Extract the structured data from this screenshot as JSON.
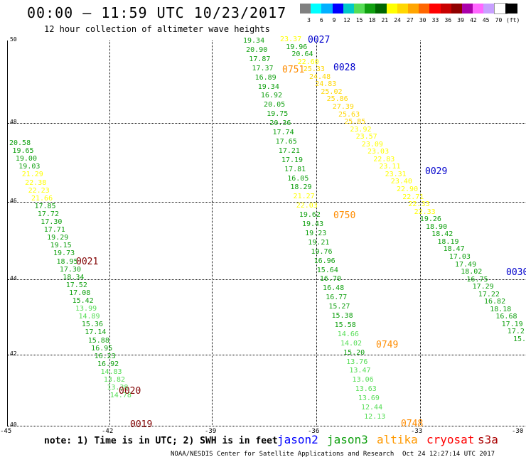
{
  "header": {
    "title": "00:00 – 11:59 UTC 10/23/2017",
    "subtitle": "12 hour collection of altimeter wave heights"
  },
  "legend": {
    "colors": [
      "#808080",
      "#00ffff",
      "#00b0ff",
      "#0000ff",
      "#00c8c8",
      "#55dd55",
      "#10a010",
      "#006600",
      "#ffff00",
      "#ffd700",
      "#ffa500",
      "#ff6600",
      "#ff0000",
      "#c80000",
      "#900000",
      "#aa00aa",
      "#ff66ff",
      "#c8a0ff",
      "#ffffff",
      "#000000"
    ],
    "labels": [
      "3",
      "6",
      "9",
      "12",
      "15",
      "18",
      "21",
      "24",
      "27",
      "30",
      "33",
      "36",
      "39",
      "42",
      "45",
      "70"
    ],
    "unit": "(ft)"
  },
  "axes": {
    "lat_labels": [
      "50",
      "48",
      "46",
      "44",
      "42",
      "40"
    ],
    "lon_labels": [
      "-45",
      "-42",
      "-39",
      "-36",
      "-33",
      "-30"
    ]
  },
  "passes": {
    "p0019": "0019",
    "p0020": "0020",
    "p0021": "0021",
    "p0027": "0027",
    "p0028": "0028",
    "p0029": "0029",
    "p0030": "0030",
    "p0748": "0748",
    "p0749": "0749",
    "p0750": "0750",
    "p0751": "0751"
  },
  "tracks": {
    "west": [
      {
        "v": "20.58",
        "c": "#10a010"
      },
      {
        "v": "19.65",
        "c": "#10a010"
      },
      {
        "v": "19.00",
        "c": "#10a010"
      },
      {
        "v": "19.03",
        "c": "#10a010"
      },
      {
        "v": "21.29",
        "c": "#ffff00"
      },
      {
        "v": "22.38",
        "c": "#ffff00"
      },
      {
        "v": "22.23",
        "c": "#ffff00"
      },
      {
        "v": "21.66",
        "c": "#ffff00"
      },
      {
        "v": "17.85",
        "c": "#10a010"
      },
      {
        "v": "17.72",
        "c": "#10a010"
      },
      {
        "v": "17.30",
        "c": "#10a010"
      },
      {
        "v": "17.71",
        "c": "#10a010"
      },
      {
        "v": "19.29",
        "c": "#10a010"
      },
      {
        "v": "19.15",
        "c": "#10a010"
      },
      {
        "v": "19.73",
        "c": "#10a010"
      },
      {
        "v": "18.95",
        "c": "#10a010"
      },
      {
        "v": "17.30",
        "c": "#10a010"
      },
      {
        "v": "18.34",
        "c": "#10a010"
      },
      {
        "v": "17.52",
        "c": "#10a010"
      },
      {
        "v": "17.08",
        "c": "#10a010"
      },
      {
        "v": "15.42",
        "c": "#10a010"
      },
      {
        "v": "13.99",
        "c": "#55dd55"
      },
      {
        "v": "14.89",
        "c": "#55dd55"
      },
      {
        "v": "15.36",
        "c": "#10a010"
      },
      {
        "v": "17.14",
        "c": "#10a010"
      },
      {
        "v": "15.88",
        "c": "#10a010"
      },
      {
        "v": "16.95",
        "c": "#10a010"
      },
      {
        "v": "16.23",
        "c": "#10a010"
      },
      {
        "v": "16.92",
        "c": "#10a010"
      },
      {
        "v": "14.83",
        "c": "#55dd55"
      },
      {
        "v": "13.82",
        "c": "#55dd55"
      },
      {
        "v": "13.38",
        "c": "#55dd55"
      },
      {
        "v": "14.78",
        "c": "#55dd55"
      }
    ],
    "middle": [
      {
        "v": "19.34",
        "c": "#10a010"
      },
      {
        "v": "20.90",
        "c": "#10a010"
      },
      {
        "v": "17.87",
        "c": "#10a010"
      },
      {
        "v": "17.37",
        "c": "#10a010"
      },
      {
        "v": "16.89",
        "c": "#10a010"
      },
      {
        "v": "19.34",
        "c": "#10a010"
      },
      {
        "v": "16.92",
        "c": "#10a010"
      },
      {
        "v": "20.05",
        "c": "#10a010"
      },
      {
        "v": "19.75",
        "c": "#10a010"
      },
      {
        "v": "20.36",
        "c": "#10a010"
      },
      {
        "v": "17.74",
        "c": "#10a010"
      },
      {
        "v": "17.65",
        "c": "#10a010"
      },
      {
        "v": "17.21",
        "c": "#10a010"
      },
      {
        "v": "17.19",
        "c": "#10a010"
      },
      {
        "v": "17.81",
        "c": "#10a010"
      },
      {
        "v": "16.05",
        "c": "#10a010"
      },
      {
        "v": "18.29",
        "c": "#10a010"
      },
      {
        "v": "21.27",
        "c": "#ffff00"
      },
      {
        "v": "22.03",
        "c": "#ffff00"
      },
      {
        "v": "19.62",
        "c": "#10a010"
      },
      {
        "v": "19.43",
        "c": "#10a010"
      },
      {
        "v": "19.23",
        "c": "#10a010"
      },
      {
        "v": "19.21",
        "c": "#10a010"
      },
      {
        "v": "19.76",
        "c": "#10a010"
      },
      {
        "v": "16.96",
        "c": "#10a010"
      },
      {
        "v": "15.64",
        "c": "#10a010"
      },
      {
        "v": "16.70",
        "c": "#10a010"
      },
      {
        "v": "16.48",
        "c": "#10a010"
      },
      {
        "v": "16.77",
        "c": "#10a010"
      },
      {
        "v": "15.27",
        "c": "#10a010"
      },
      {
        "v": "15.38",
        "c": "#10a010"
      },
      {
        "v": "15.58",
        "c": "#10a010"
      },
      {
        "v": "14.66",
        "c": "#55dd55"
      },
      {
        "v": "14.02",
        "c": "#55dd55"
      },
      {
        "v": "15.20",
        "c": "#10a010"
      },
      {
        "v": "13.76",
        "c": "#55dd55"
      },
      {
        "v": "13.47",
        "c": "#55dd55"
      },
      {
        "v": "13.06",
        "c": "#55dd55"
      },
      {
        "v": "13.63",
        "c": "#55dd55"
      },
      {
        "v": "13.69",
        "c": "#55dd55"
      },
      {
        "v": "12.44",
        "c": "#55dd55"
      },
      {
        "v": "12.13",
        "c": "#55dd55"
      }
    ],
    "upper": [
      {
        "v": "23.37",
        "c": "#ffff00"
      },
      {
        "v": "19.96",
        "c": "#10a010"
      },
      {
        "v": "20.64",
        "c": "#10a010"
      },
      {
        "v": "22.60",
        "c": "#ffff00"
      },
      {
        "v": "25.33",
        "c": "#ffd700"
      },
      {
        "v": "24.48",
        "c": "#ffd700"
      },
      {
        "v": "24.83",
        "c": "#ffd700"
      },
      {
        "v": "25.02",
        "c": "#ffd700"
      },
      {
        "v": "25.86",
        "c": "#ffd700"
      },
      {
        "v": "27.39",
        "c": "#ffd700"
      },
      {
        "v": "25.63",
        "c": "#ffd700"
      },
      {
        "v": "25.85",
        "c": "#ffd700"
      },
      {
        "v": "23.92",
        "c": "#ffff00"
      },
      {
        "v": "23.57",
        "c": "#ffff00"
      },
      {
        "v": "23.09",
        "c": "#ffff00"
      },
      {
        "v": "23.03",
        "c": "#ffff00"
      },
      {
        "v": "22.83",
        "c": "#ffff00"
      },
      {
        "v": "23.11",
        "c": "#ffff00"
      },
      {
        "v": "23.31",
        "c": "#ffff00"
      },
      {
        "v": "23.40",
        "c": "#ffff00"
      },
      {
        "v": "22.90",
        "c": "#ffff00"
      },
      {
        "v": "22.71",
        "c": "#ffff00"
      },
      {
        "v": "22.33",
        "c": "#ffff00"
      },
      {
        "v": "22.33",
        "c": "#ffff00"
      },
      {
        "v": "19.26",
        "c": "#10a010"
      },
      {
        "v": "18.90",
        "c": "#10a010"
      },
      {
        "v": "18.42",
        "c": "#10a010"
      },
      {
        "v": "18.19",
        "c": "#10a010"
      },
      {
        "v": "18.47",
        "c": "#10a010"
      },
      {
        "v": "17.03",
        "c": "#10a010"
      },
      {
        "v": "17.49",
        "c": "#10a010"
      },
      {
        "v": "18.02",
        "c": "#10a010"
      },
      {
        "v": "16.75",
        "c": "#10a010"
      },
      {
        "v": "17.29",
        "c": "#10a010"
      },
      {
        "v": "17.22",
        "c": "#10a010"
      },
      {
        "v": "16.82",
        "c": "#10a010"
      },
      {
        "v": "18.18",
        "c": "#10a010"
      },
      {
        "v": "16.68",
        "c": "#10a010"
      },
      {
        "v": "17.19",
        "c": "#10a010"
      },
      {
        "v": "17.2",
        "c": "#10a010"
      },
      {
        "v": "15.",
        "c": "#10a010"
      }
    ]
  },
  "footer": {
    "note": "note: 1) Time is in UTC; 2) SWH is in feet",
    "missions": [
      "jason2",
      "jason3",
      "altika",
      "cryosat",
      "s3a"
    ],
    "credit": "NOAA/NESDIS Center for Satellite Applications and Research",
    "timestamp": "Oct 24 12:27:14 UTC 2017"
  }
}
